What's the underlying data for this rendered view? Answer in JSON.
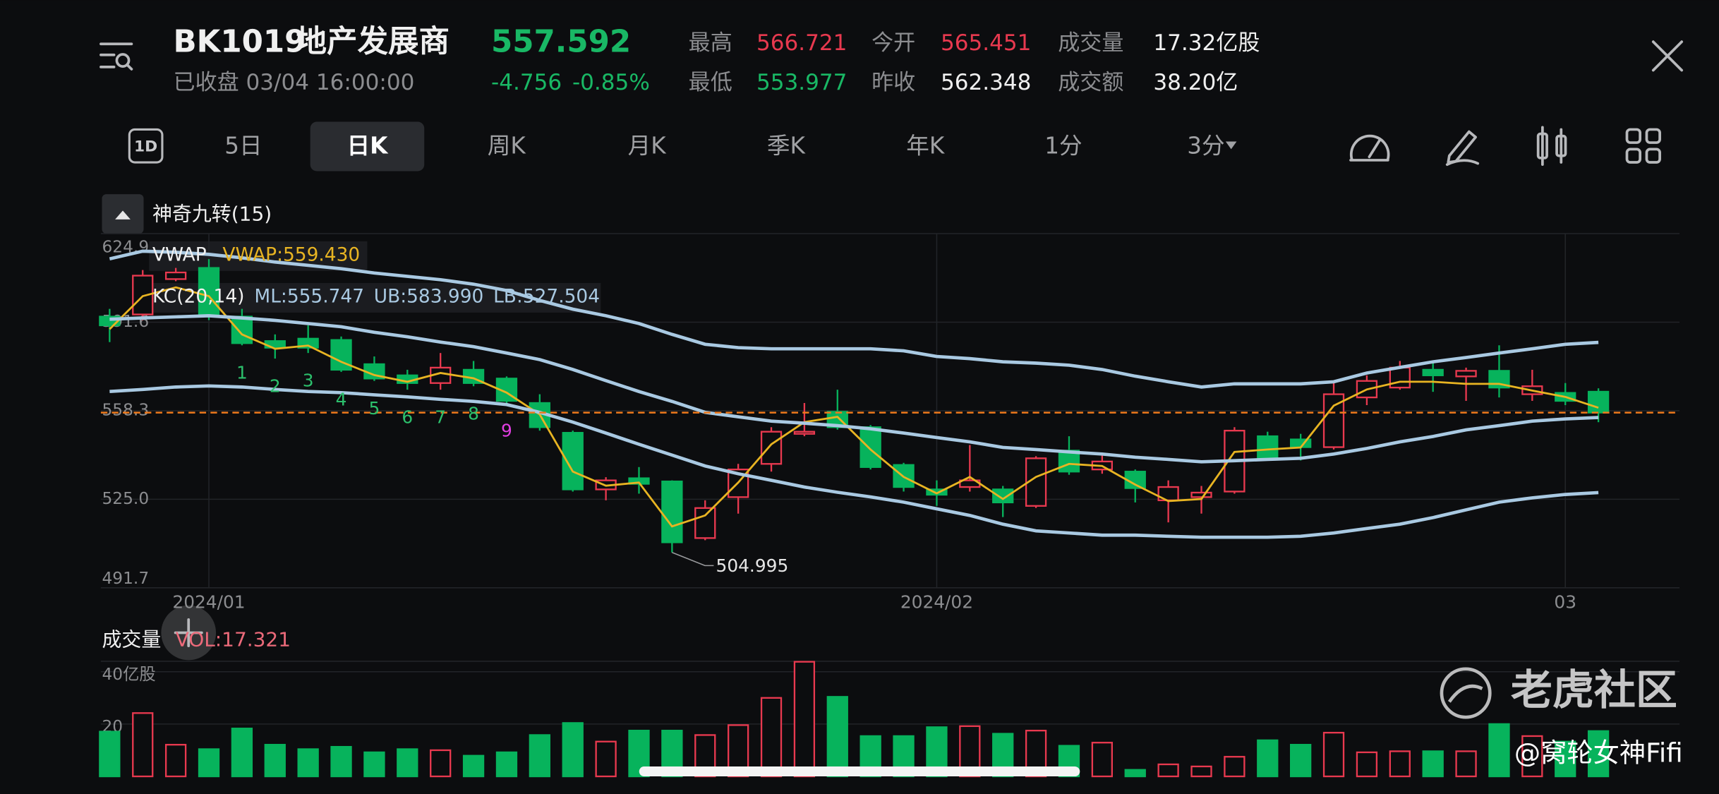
{
  "header": {
    "code": "BK1019",
    "name": "地产发展商",
    "price": "557.592",
    "status": "已收盘 03/04 16:00:00",
    "change": "-4.756",
    "change_pct": "-0.85%",
    "stats": [
      {
        "label": "最高",
        "value": "566.721",
        "color": "#e8394f"
      },
      {
        "label": "今开",
        "value": "565.451",
        "color": "#e8394f"
      },
      {
        "label": "成交量",
        "value": "17.32亿股",
        "color": "#f0f0f0"
      },
      {
        "label": "最低",
        "value": "553.977",
        "color": "#19b865"
      },
      {
        "label": "昨收",
        "value": "562.348",
        "color": "#f0f0f0"
      },
      {
        "label": "成交额",
        "value": "38.20亿",
        "color": "#f0f0f0"
      }
    ]
  },
  "tab_icon": "1D",
  "tabs": [
    "5日",
    "日K",
    "周K",
    "月K",
    "季K",
    "年K",
    "1分",
    "3分"
  ],
  "selected_tab": "日K",
  "indicator_toggle": "神奇九转(15)",
  "chart_data": [
    {
      "type": "candlestick",
      "up_color": "#e8394f",
      "down_color": "#07b35c",
      "categories": [
        null,
        null,
        null,
        "2024/01",
        null,
        null,
        null,
        null,
        null,
        null,
        null,
        null,
        null,
        null,
        null,
        null,
        null,
        null,
        null,
        null,
        null,
        null,
        null,
        null,
        null,
        "2024/02",
        null,
        null,
        null,
        null,
        null,
        null,
        null,
        null,
        null,
        null,
        null,
        null,
        null,
        null,
        null,
        null,
        null,
        null,
        "03",
        null
      ],
      "open": [
        593.7,
        594.5,
        607.8,
        612.0,
        593.7,
        584.5,
        585.4,
        584.9,
        575.8,
        571.6,
        568.7,
        573.7,
        570.4,
        561.2,
        550.0,
        528.7,
        532.9,
        531.7,
        510.4,
        525.8,
        538.3,
        549.6,
        557.9,
        552.1,
        537.9,
        528.7,
        529.6,
        528.7,
        522.5,
        543.3,
        536.2,
        535.4,
        524.6,
        525.8,
        527.9,
        548.7,
        547.5,
        544.6,
        563.3,
        567.0,
        573.7,
        571.2,
        573.3,
        564.5,
        565.0,
        565.451
      ],
      "high": [
        596.6,
        611.2,
        612.0,
        615.3,
        596.6,
        587.0,
        590.4,
        586.2,
        578.7,
        573.7,
        580.0,
        577.0,
        571.2,
        564.5,
        550.8,
        533.3,
        537.1,
        532.1,
        524.6,
        538.3,
        552.1,
        561.2,
        566.2,
        552.9,
        538.7,
        532.1,
        545.4,
        530.0,
        541.2,
        548.7,
        542.5,
        536.2,
        532.1,
        530.0,
        552.1,
        550.4,
        549.6,
        568.7,
        571.6,
        577.0,
        577.0,
        574.5,
        582.9,
        573.7,
        568.7,
        566.721
      ],
      "low": [
        584.1,
        592.4,
        607.0,
        592.4,
        582.9,
        577.9,
        580.0,
        572.9,
        569.5,
        566.2,
        566.2,
        567.5,
        561.2,
        550.8,
        527.9,
        524.6,
        527.1,
        504.995,
        509.6,
        519.6,
        535.4,
        548.7,
        551.2,
        536.2,
        527.9,
        522.5,
        527.9,
        518.3,
        521.7,
        534.2,
        534.6,
        523.8,
        516.3,
        519.6,
        527.1,
        539.6,
        539.6,
        543.7,
        560.4,
        566.2,
        565.4,
        562.0,
        563.3,
        562.0,
        560.4,
        553.977
      ],
      "close": [
        590.4,
        609.1,
        610.3,
        594.5,
        583.7,
        582.0,
        582.0,
        573.7,
        570.4,
        568.7,
        574.5,
        568.7,
        562.0,
        552.1,
        528.7,
        532.1,
        530.8,
        508.8,
        521.7,
        536.2,
        550.4,
        550.4,
        552.1,
        537.1,
        529.6,
        526.7,
        532.1,
        523.8,
        540.4,
        535.4,
        539.2,
        529.2,
        529.6,
        527.5,
        550.8,
        540.4,
        544.6,
        564.5,
        569.5,
        574.5,
        571.6,
        573.3,
        567.0,
        567.5,
        562.0,
        557.592
      ],
      "kc_label": "KC(20,14)",
      "series": [
        {
          "name": "VWAP",
          "color": "#e8b422",
          "value_label": "VWAP:559.430",
          "values": [
            589.0,
            601.4,
            604.7,
            601.4,
            587.0,
            581.6,
            582.8,
            576.7,
            571.7,
            569.2,
            572.5,
            570.5,
            565.1,
            556.9,
            535.4,
            530.1,
            531.3,
            514.8,
            518.9,
            531.3,
            545.7,
            554.0,
            556.0,
            543.7,
            533.4,
            527.2,
            533.4,
            525.1,
            533.4,
            538.3,
            537.5,
            530.5,
            524.3,
            525.1,
            542.8,
            543.7,
            544.5,
            560.2,
            566.3,
            569.2,
            569.2,
            568.4,
            568.4,
            565.9,
            563.5,
            559.43
          ]
        },
        {
          "name": "ML",
          "color": "#a9c9e2",
          "value_label": "ML:555.747",
          "values": [
            592.7,
            593.2,
            593.6,
            594.0,
            593.2,
            592.3,
            591.1,
            589.9,
            587.8,
            586.1,
            584.1,
            582.4,
            580.0,
            577.5,
            573.8,
            569.6,
            565.5,
            561.8,
            557.7,
            556.0,
            554.4,
            553.6,
            552.7,
            551.5,
            549.9,
            548.2,
            546.6,
            544.5,
            543.7,
            542.8,
            542.0,
            540.8,
            540.0,
            539.1,
            539.5,
            540.0,
            540.4,
            542.0,
            544.1,
            546.6,
            548.6,
            551.1,
            552.7,
            554.4,
            555.2,
            555.747
          ]
        },
        {
          "name": "UB",
          "color": "#a9c9e2",
          "value_label": "UB:583.990",
          "values": [
            615.4,
            618.3,
            617.9,
            617.1,
            615.8,
            614.2,
            613.0,
            611.7,
            610.1,
            608.8,
            607.6,
            605.9,
            603.5,
            599.8,
            596.5,
            594.0,
            591.1,
            587.0,
            583.3,
            582.0,
            581.6,
            581.6,
            581.6,
            581.6,
            580.8,
            578.7,
            577.9,
            576.7,
            576.2,
            575.4,
            573.8,
            571.3,
            569.2,
            567.2,
            568.4,
            568.4,
            568.4,
            569.2,
            572.5,
            574.6,
            576.7,
            578.3,
            580.0,
            581.6,
            583.3,
            583.99
          ]
        },
        {
          "name": "LB",
          "color": "#a9c9e2",
          "value_label": "LB:527.504",
          "values": [
            565.5,
            566.3,
            567.2,
            567.6,
            567.2,
            566.3,
            565.5,
            565.1,
            564.3,
            563.5,
            562.6,
            561.8,
            560.6,
            557.7,
            554.0,
            549.9,
            545.7,
            541.6,
            537.5,
            534.6,
            532.1,
            529.6,
            527.6,
            525.9,
            523.9,
            521.4,
            518.9,
            515.6,
            513.1,
            512.3,
            511.5,
            511.5,
            511.1,
            510.7,
            510.7,
            510.7,
            511.1,
            512.3,
            514.0,
            515.6,
            518.1,
            521.0,
            523.9,
            525.5,
            526.8,
            527.504
          ]
        }
      ],
      "td_labels": [
        null,
        null,
        null,
        null,
        "1",
        "2",
        "3",
        "4",
        "5",
        "6",
        "7",
        "8",
        "9",
        null,
        null,
        null,
        null,
        null,
        null,
        null,
        null,
        null,
        null,
        null,
        null,
        null,
        null,
        null,
        null,
        null,
        null,
        null,
        null,
        null,
        null,
        null,
        null,
        null,
        null,
        null,
        null,
        null,
        null,
        null,
        null,
        null
      ],
      "td_color": "#2cc06c",
      "td_final_color": "#e23ee2",
      "last_price": 557.592,
      "last_price_color": "#ee7a1c",
      "ylim": [
        491.7,
        624.9
      ],
      "yticks": [
        491.7,
        {
          "value": 525,
          "label": "525.0"
        },
        558.3,
        591.6,
        624.9
      ],
      "grid": true
    },
    {
      "type": "bar",
      "title": "成交量",
      "value_label": "VOL:17.321",
      "values": [
        17.1,
        24.2,
        12.1,
        10.4,
        18.3,
        12.1,
        10.4,
        11.3,
        9.2,
        10.4,
        10.0,
        7.9,
        9.2,
        15.8,
        20.4,
        13.3,
        17.5,
        17.5,
        15.8,
        19.6,
        30.0,
        43.8,
        30.4,
        15.4,
        15.4,
        18.8,
        19.2,
        16.3,
        17.5,
        11.7,
        12.9,
        2.5,
        4.6,
        3.8,
        7.5,
        13.8,
        12.1,
        16.7,
        9.2,
        9.6,
        9.6,
        9.6,
        20.0,
        15.4,
        13.3,
        17.321
      ],
      "ylim": [
        0,
        44
      ],
      "yticks": [
        20,
        {
          "value": 40,
          "label": "40亿股"
        }
      ],
      "grid": true
    }
  ],
  "watermark": {
    "brand": "老虎社区",
    "author": "@窝轮女神Fifi"
  }
}
